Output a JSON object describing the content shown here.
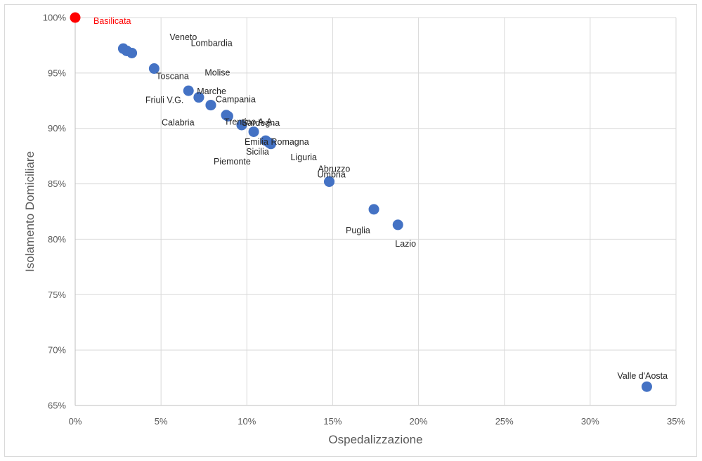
{
  "chart_data": {
    "type": "scatter",
    "title": "",
    "xlabel": "Ospedalizzazione",
    "ylabel": "Isolamento Domiciliare",
    "xlim": [
      0,
      0.35
    ],
    "ylim": [
      0.65,
      1.0
    ],
    "x_ticks": [
      0,
      0.05,
      0.1,
      0.15,
      0.2,
      0.25,
      0.3,
      0.35
    ],
    "y_ticks": [
      0.65,
      0.7,
      0.75,
      0.8,
      0.85,
      0.9,
      0.95,
      1.0
    ],
    "x_tick_labels": [
      "0%",
      "5%",
      "10%",
      "15%",
      "20%",
      "25%",
      "30%",
      "35%"
    ],
    "y_tick_labels": [
      "65%",
      "70%",
      "75%",
      "80%",
      "85%",
      "90%",
      "95%",
      "100%"
    ],
    "grid": true,
    "point_color": "#4472C4",
    "highlight_color": "#FF0000",
    "points": [
      {
        "label": "Basilicata",
        "x": 0.0,
        "y": 1.0,
        "highlight": true
      },
      {
        "label": "Veneto",
        "x": 0.028,
        "y": 0.972
      },
      {
        "label": "",
        "x": 0.03,
        "y": 0.97
      },
      {
        "label": "Lombardia",
        "x": 0.033,
        "y": 0.968
      },
      {
        "label": "Molise",
        "x": 0.046,
        "y": 0.954
      },
      {
        "label": "Toscana",
        "x": 0.03,
        "y": 0.97
      },
      {
        "label": "Marche",
        "x": 0.066,
        "y": 0.934
      },
      {
        "label": "Friuli V.G.",
        "x": 0.072,
        "y": 0.928
      },
      {
        "label": "Campania",
        "x": 0.072,
        "y": 0.928
      },
      {
        "label": "Calabria",
        "x": 0.079,
        "y": 0.921
      },
      {
        "label": "Trentino A.A.",
        "x": 0.079,
        "y": 0.921
      },
      {
        "label": "Sardegna",
        "x": 0.088,
        "y": 0.912
      },
      {
        "label": "",
        "x": 0.089,
        "y": 0.911
      },
      {
        "label": "Emilia Romagna",
        "x": 0.097,
        "y": 0.903
      },
      {
        "label": "",
        "x": 0.104,
        "y": 0.897
      },
      {
        "label": "Sicilia",
        "x": 0.111,
        "y": 0.889
      },
      {
        "label": "Piemonte",
        "x": 0.113,
        "y": 0.887
      },
      {
        "label": "Liguria",
        "x": 0.114,
        "y": 0.886
      },
      {
        "label": "Abruzzo",
        "x": 0.148,
        "y": 0.852
      },
      {
        "label": "Umbria",
        "x": 0.148,
        "y": 0.852
      },
      {
        "label": "Puglia",
        "x": 0.174,
        "y": 0.827
      },
      {
        "label": "Lazio",
        "x": 0.188,
        "y": 0.813
      },
      {
        "label": "Valle d'Aosta",
        "x": 0.333,
        "y": 0.667
      }
    ]
  }
}
